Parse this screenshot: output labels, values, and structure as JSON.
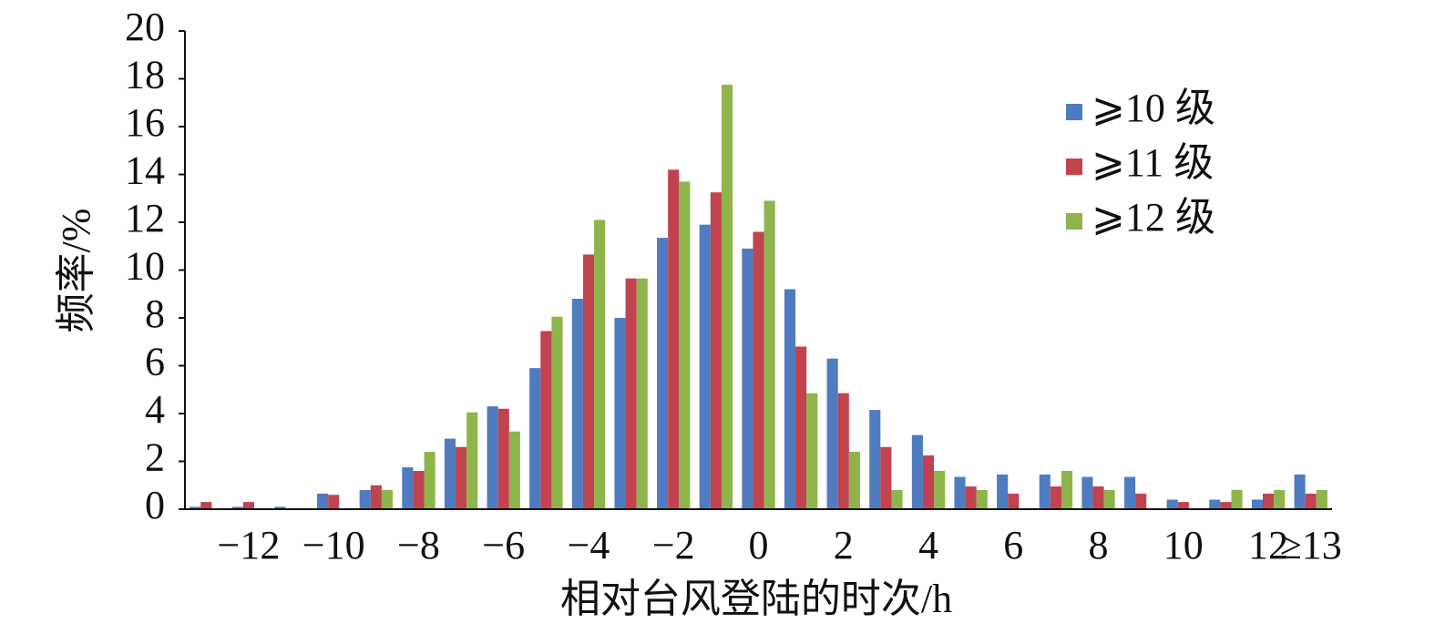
{
  "chart_data": {
    "type": "bar",
    "x_label": "相对台风登陆的时次/h",
    "y_label": "频率/%",
    "categories": [
      null,
      "−12",
      null,
      "−10",
      null,
      "−8",
      null,
      "−6",
      null,
      "−4",
      null,
      "−2",
      null,
      "0",
      null,
      "2",
      null,
      "4",
      null,
      "6",
      null,
      "8",
      null,
      "10",
      null,
      "12",
      "≥13"
    ],
    "series": [
      {
        "name": "⩾10 级",
        "color": "#4f7cc0",
        "values": [
          0.1,
          0.1,
          0.1,
          0.65,
          0.8,
          1.75,
          2.95,
          4.3,
          5.9,
          8.8,
          8.0,
          11.35,
          11.9,
          10.9,
          9.2,
          6.3,
          4.15,
          3.1,
          1.35,
          1.45,
          1.45,
          1.35,
          1.35,
          0.4,
          0.4,
          0.4,
          1.45
        ]
      },
      {
        "name": "⩾11 级",
        "color": "#c0434f",
        "values": [
          0.3,
          0.3,
          0,
          0.6,
          1.0,
          1.6,
          2.6,
          4.2,
          7.45,
          10.65,
          9.65,
          14.2,
          13.25,
          11.6,
          6.8,
          4.85,
          2.6,
          2.25,
          0.95,
          0.65,
          0.95,
          0.95,
          0.65,
          0.3,
          0.3,
          0.65,
          0.65
        ]
      },
      {
        "name": "⩾12 级",
        "color": "#8db54c",
        "values": [
          0,
          0,
          0,
          0,
          0.8,
          2.4,
          4.05,
          3.25,
          8.05,
          12.1,
          9.65,
          13.7,
          17.75,
          12.9,
          4.85,
          2.4,
          0.8,
          1.6,
          0.8,
          0,
          1.6,
          0.8,
          0,
          0,
          0.8,
          0.8,
          0.8
        ]
      }
    ],
    "ylim": [
      0,
      20
    ],
    "yticks": [
      0,
      2,
      4,
      6,
      8,
      10,
      12,
      14,
      16,
      18,
      20
    ],
    "grid": false,
    "legend": "upper right"
  }
}
